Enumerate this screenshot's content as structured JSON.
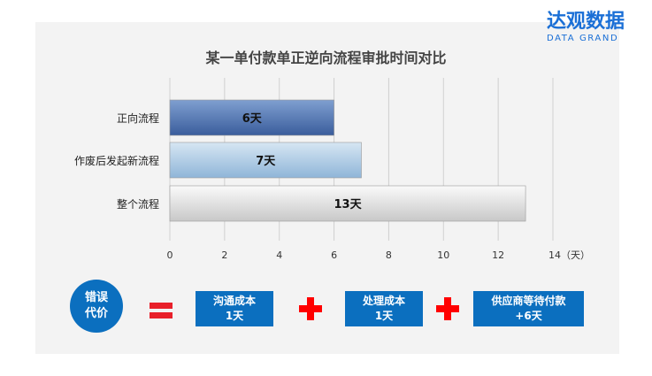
{
  "logo": {
    "cn": "达观数据",
    "en": "DATA GRAND"
  },
  "chart_data": {
    "type": "bar",
    "orientation": "horizontal",
    "title": "某一单付款单正逆向流程审批时间对比",
    "categories": [
      "正向流程",
      "作废后发起新流程",
      "整个流程"
    ],
    "values": [
      6,
      7,
      13
    ],
    "data_labels": [
      "6天",
      "7天",
      "13天"
    ],
    "xlim": [
      0,
      14
    ],
    "x_ticks": [
      "0",
      "2",
      "4",
      "6",
      "8",
      "10",
      "12",
      "14（天）"
    ],
    "grid": true,
    "bar_colors": [
      "#4f72b0",
      "#a9c8e2",
      "#e6e6e6"
    ]
  },
  "formula": {
    "result": [
      "错误",
      "代价"
    ],
    "terms": [
      [
        "沟通成本",
        "1天"
      ],
      [
        "处理成本",
        "1天"
      ],
      [
        "供应商等待付款",
        "+6天"
      ]
    ],
    "accent": "#0b6fbf",
    "operator_color": "#ff0000"
  }
}
